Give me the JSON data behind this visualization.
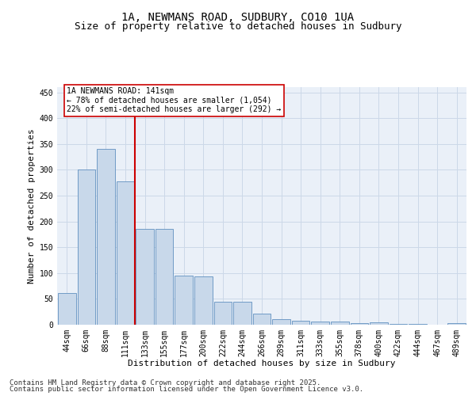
{
  "title": "1A, NEWMANS ROAD, SUDBURY, CO10 1UA",
  "subtitle": "Size of property relative to detached houses in Sudbury",
  "xlabel": "Distribution of detached houses by size in Sudbury",
  "ylabel": "Number of detached properties",
  "categories": [
    "44sqm",
    "66sqm",
    "88sqm",
    "111sqm",
    "133sqm",
    "155sqm",
    "177sqm",
    "200sqm",
    "222sqm",
    "244sqm",
    "266sqm",
    "289sqm",
    "311sqm",
    "333sqm",
    "355sqm",
    "378sqm",
    "400sqm",
    "422sqm",
    "444sqm",
    "467sqm",
    "489sqm"
  ],
  "values": [
    62,
    300,
    340,
    278,
    185,
    185,
    95,
    93,
    45,
    45,
    21,
    11,
    7,
    6,
    6,
    3,
    4,
    2,
    1,
    0,
    3
  ],
  "bar_color": "#c8d8ea",
  "bar_edge_color": "#6090c0",
  "vline_color": "#cc0000",
  "vline_index": 4,
  "annotation_title": "1A NEWMANS ROAD: 141sqm",
  "annotation_line1": "← 78% of detached houses are smaller (1,054)",
  "annotation_line2": "22% of semi-detached houses are larger (292) →",
  "annotation_box_color": "#ffffff",
  "annotation_box_edge": "#cc0000",
  "footer1": "Contains HM Land Registry data © Crown copyright and database right 2025.",
  "footer2": "Contains public sector information licensed under the Open Government Licence v3.0.",
  "ylim": [
    0,
    460
  ],
  "yticks": [
    0,
    50,
    100,
    150,
    200,
    250,
    300,
    350,
    400,
    450
  ],
  "grid_color": "#ccd8e8",
  "background_color": "#eaf0f8",
  "title_fontsize": 10,
  "subtitle_fontsize": 9,
  "xlabel_fontsize": 8,
  "ylabel_fontsize": 8,
  "tick_fontsize": 7,
  "footer_fontsize": 6.5
}
